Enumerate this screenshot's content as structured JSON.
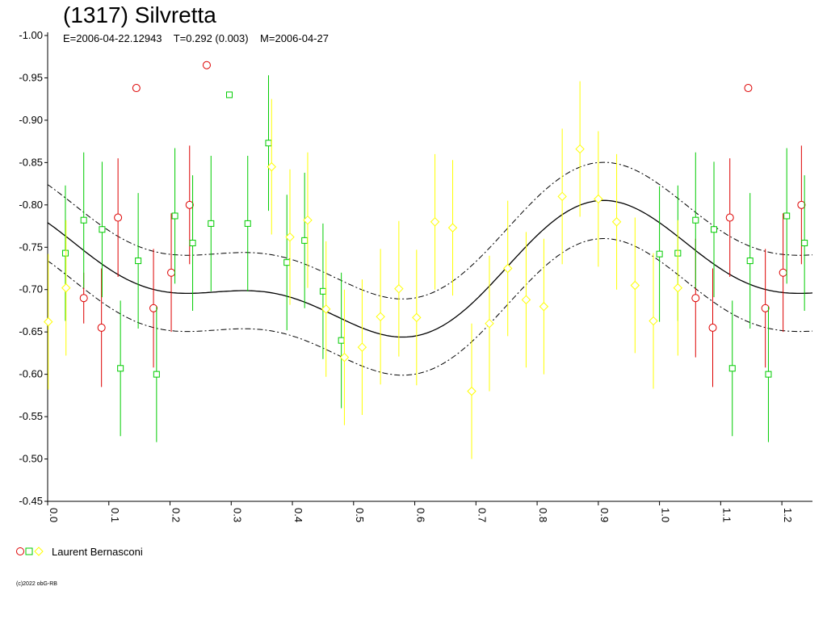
{
  "header": {
    "title": "(1317) Silvretta",
    "subtitle": "E=2006-04-22.12943    T=0.292 (0.003)    M=2006-04-27"
  },
  "legend": {
    "label": "Laurent Bernasconi"
  },
  "footer": {
    "copyright": "(c)2022 obG-RB"
  },
  "colors": {
    "red": "#dd0000",
    "green": "#00cc00",
    "yellow": "#ffff00",
    "curve": "#000000"
  },
  "chart_data": {
    "type": "scatter",
    "xlim": [
      0.0,
      1.25
    ],
    "ylim": [
      -1.0,
      -0.45
    ],
    "y_inverted": true,
    "x_ticks": [
      "0.0",
      "0.1",
      "0.2",
      "0.3",
      "0.4",
      "0.5",
      "0.6",
      "0.7",
      "0.8",
      "0.9",
      "1.0",
      "1.1",
      "1.2"
    ],
    "y_ticks": [
      "-1.00",
      "-0.95",
      "-0.90",
      "-0.85",
      "-0.80",
      "-0.75",
      "-0.70",
      "-0.65",
      "-0.60",
      "-0.55",
      "-0.50",
      "-0.45"
    ],
    "fit_curve": {
      "mean": -0.715,
      "harmonics": [
        {
          "a": -0.06,
          "b": 0.015,
          "k": 1
        },
        {
          "a": -0.004,
          "b": 0.033,
          "k": 2
        }
      ],
      "band": 0.045
    },
    "series": [
      {
        "name": "",
        "marker": "circle",
        "color": "red",
        "points": [
          {
            "x": 0.059,
            "y": -0.69,
            "err": 0.03
          },
          {
            "x": 0.088,
            "y": -0.655,
            "err": 0.07
          },
          {
            "x": 0.115,
            "y": -0.785,
            "err": 0.07
          },
          {
            "x": 0.145,
            "y": -0.938,
            "err": 0.0
          },
          {
            "x": 0.173,
            "y": -0.678,
            "err": 0.07
          },
          {
            "x": 0.202,
            "y": -0.72,
            "err": 0.07
          },
          {
            "x": 0.232,
            "y": -0.8,
            "err": 0.07
          },
          {
            "x": 0.26,
            "y": -0.965,
            "err": 0.0
          },
          {
            "x": 1.059,
            "y": -0.69,
            "err": 0.07
          },
          {
            "x": 1.087,
            "y": -0.655,
            "err": 0.07
          },
          {
            "x": 1.115,
            "y": -0.785,
            "err": 0.07
          },
          {
            "x": 1.145,
            "y": -0.938,
            "err": 0.0
          },
          {
            "x": 1.173,
            "y": -0.678,
            "err": 0.07
          },
          {
            "x": 1.202,
            "y": -0.72,
            "err": 0.07
          },
          {
            "x": 1.232,
            "y": -0.8,
            "err": 0.07
          }
        ]
      },
      {
        "name": "",
        "marker": "square",
        "color": "green",
        "points": [
          {
            "x": 0.029,
            "y": -0.743,
            "err": 0.08
          },
          {
            "x": 0.059,
            "y": -0.782,
            "err": 0.08
          },
          {
            "x": 0.089,
            "y": -0.771,
            "err": 0.08
          },
          {
            "x": 0.119,
            "y": -0.607,
            "err": 0.08
          },
          {
            "x": 0.148,
            "y": -0.734,
            "err": 0.08
          },
          {
            "x": 0.178,
            "y": -0.6,
            "err": 0.08
          },
          {
            "x": 0.208,
            "y": -0.787,
            "err": 0.08
          },
          {
            "x": 0.237,
            "y": -0.755,
            "err": 0.08
          },
          {
            "x": 0.267,
            "y": -0.778,
            "err": 0.08
          },
          {
            "x": 0.297,
            "y": -0.93,
            "err": 0.0
          },
          {
            "x": 0.327,
            "y": -0.778,
            "err": 0.08
          },
          {
            "x": 0.361,
            "y": -0.873,
            "err": 0.08
          },
          {
            "x": 0.391,
            "y": -0.732,
            "err": 0.08
          },
          {
            "x": 0.42,
            "y": -0.758,
            "err": 0.08
          },
          {
            "x": 0.45,
            "y": -0.698,
            "err": 0.08
          },
          {
            "x": 0.48,
            "y": -0.64,
            "err": 0.08
          },
          {
            "x": 1.0,
            "y": -0.742,
            "err": 0.08
          },
          {
            "x": 1.03,
            "y": -0.743,
            "err": 0.08
          },
          {
            "x": 1.059,
            "y": -0.782,
            "err": 0.08
          },
          {
            "x": 1.089,
            "y": -0.771,
            "err": 0.08
          },
          {
            "x": 1.119,
            "y": -0.607,
            "err": 0.08
          },
          {
            "x": 1.148,
            "y": -0.734,
            "err": 0.08
          },
          {
            "x": 1.178,
            "y": -0.6,
            "err": 0.08
          },
          {
            "x": 1.208,
            "y": -0.787,
            "err": 0.08
          },
          {
            "x": 1.237,
            "y": -0.755,
            "err": 0.08
          }
        ]
      },
      {
        "name": "",
        "marker": "diamond",
        "color": "yellow",
        "points": [
          {
            "x": 0.001,
            "y": -0.662,
            "err": 0.08
          },
          {
            "x": 0.03,
            "y": -0.702,
            "err": 0.08
          },
          {
            "x": 0.366,
            "y": -0.845,
            "err": 0.08
          },
          {
            "x": 0.396,
            "y": -0.762,
            "err": 0.08
          },
          {
            "x": 0.425,
            "y": -0.782,
            "err": 0.08
          },
          {
            "x": 0.455,
            "y": -0.677,
            "err": 0.08
          },
          {
            "x": 0.485,
            "y": -0.62,
            "err": 0.08
          },
          {
            "x": 0.514,
            "y": -0.632,
            "err": 0.08
          },
          {
            "x": 0.544,
            "y": -0.668,
            "err": 0.08
          },
          {
            "x": 0.574,
            "y": -0.701,
            "err": 0.08
          },
          {
            "x": 0.603,
            "y": -0.667,
            "err": 0.08
          },
          {
            "x": 0.633,
            "y": -0.78,
            "err": 0.08
          },
          {
            "x": 0.662,
            "y": -0.773,
            "err": 0.08
          },
          {
            "x": 0.693,
            "y": -0.58,
            "err": 0.08
          },
          {
            "x": 0.722,
            "y": -0.66,
            "err": 0.08
          },
          {
            "x": 0.752,
            "y": -0.725,
            "err": 0.08
          },
          {
            "x": 0.782,
            "y": -0.688,
            "err": 0.08
          },
          {
            "x": 0.811,
            "y": -0.68,
            "err": 0.08
          },
          {
            "x": 0.841,
            "y": -0.81,
            "err": 0.08
          },
          {
            "x": 0.87,
            "y": -0.866,
            "err": 0.08
          },
          {
            "x": 0.9,
            "y": -0.807,
            "err": 0.08
          },
          {
            "x": 0.93,
            "y": -0.78,
            "err": 0.08
          },
          {
            "x": 0.96,
            "y": -0.705,
            "err": 0.08
          },
          {
            "x": 0.99,
            "y": -0.663,
            "err": 0.08
          },
          {
            "x": 1.03,
            "y": -0.702,
            "err": 0.08
          }
        ]
      }
    ]
  }
}
